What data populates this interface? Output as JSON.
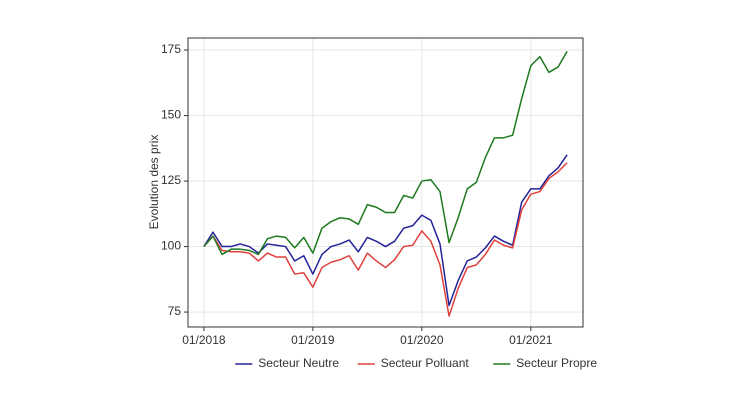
{
  "chart_data": {
    "type": "line",
    "y_label": "Evolution des prix",
    "categories": [
      "01/2018",
      null,
      null,
      null,
      null,
      null,
      null,
      null,
      null,
      null,
      null,
      null,
      "01/2019",
      null,
      null,
      null,
      null,
      null,
      null,
      null,
      null,
      null,
      null,
      null,
      "01/2020",
      null,
      null,
      null,
      null,
      null,
      null,
      null,
      null,
      null,
      null,
      null,
      "01/2021",
      null,
      null,
      null,
      null
    ],
    "series": [
      {
        "name": "Secteur Neutre",
        "color": "#23239a",
        "values": [
          100,
          105.5,
          100,
          100,
          101,
          100,
          97.5,
          101,
          100.5,
          100,
          94.5,
          96.5,
          89.5,
          97,
          100,
          101,
          102.5,
          98,
          103.5,
          102,
          100,
          102,
          107,
          108,
          112,
          110,
          101,
          77.5,
          87,
          94.5,
          96,
          99.5,
          104,
          102,
          100.5,
          117,
          122,
          122,
          127,
          130,
          135
        ]
      },
      {
        "name": "Secteur Polluant",
        "color": "#e0403c",
        "values": [
          100,
          104,
          98.5,
          98,
          98,
          97.5,
          94.5,
          97.5,
          96,
          96,
          89.5,
          90,
          84.5,
          92,
          94,
          95,
          96.5,
          91,
          97.5,
          94.5,
          92,
          95,
          100,
          100.5,
          106,
          102,
          93,
          73.5,
          84,
          92,
          93,
          97,
          102.5,
          100.5,
          99.5,
          114,
          120,
          121,
          126,
          128.5,
          132
        ]
      },
      {
        "name": "Secteur Propre",
        "color": "#1e7a1e",
        "values": [
          100,
          104,
          97,
          99,
          99,
          98.5,
          97,
          103,
          104,
          103.5,
          99.5,
          103.5,
          97.5,
          107,
          109.5,
          111,
          110.5,
          108.5,
          116,
          115,
          113,
          113,
          119.5,
          118.5,
          125,
          125.5,
          121,
          101.5,
          111,
          122,
          124.5,
          134,
          141.5,
          141.5,
          142.5,
          156.5,
          169,
          172.5,
          166.5,
          168.5,
          174.5
        ]
      }
    ],
    "ylim": [
      69.3,
      179.6
    ],
    "yticks": [
      75,
      100,
      125,
      150,
      175
    ],
    "grid": true,
    "legend": "bottom"
  }
}
